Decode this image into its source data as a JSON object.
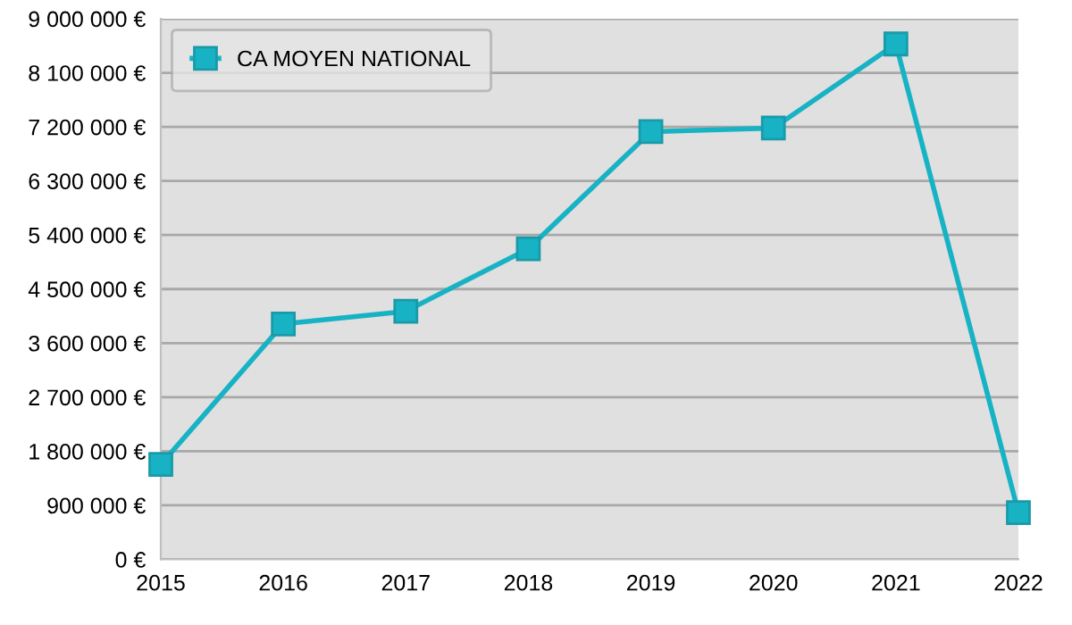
{
  "chart_data": {
    "type": "line",
    "categories": [
      "2015",
      "2016",
      "2017",
      "2018",
      "2019",
      "2020",
      "2021",
      "2022"
    ],
    "series": [
      {
        "name": "CA MOYEN NATIONAL",
        "color": "#17b3c4",
        "values": [
          1580000,
          3920000,
          4130000,
          5170000,
          7120000,
          7180000,
          8580000,
          780000
        ]
      }
    ],
    "ylim": [
      0,
      9000000
    ],
    "yticks": [
      {
        "value": 0,
        "label": "0 €"
      },
      {
        "value": 900000,
        "label": "900 000 €"
      },
      {
        "value": 1800000,
        "label": "1 800 000 €"
      },
      {
        "value": 2700000,
        "label": "2 700 000 €"
      },
      {
        "value": 3600000,
        "label": "3 600 000 €"
      },
      {
        "value": 4500000,
        "label": "4 500 000 €"
      },
      {
        "value": 5400000,
        "label": "5 400 000 €"
      },
      {
        "value": 6300000,
        "label": "6 300 000 €"
      },
      {
        "value": 7200000,
        "label": "7 200 000 €"
      },
      {
        "value": 8100000,
        "label": "8 100 000 €"
      },
      {
        "value": 9000000,
        "label": "9 000 000 €"
      }
    ],
    "grid": "y",
    "legend": "top left",
    "marker": "square",
    "line_style": "solid"
  }
}
